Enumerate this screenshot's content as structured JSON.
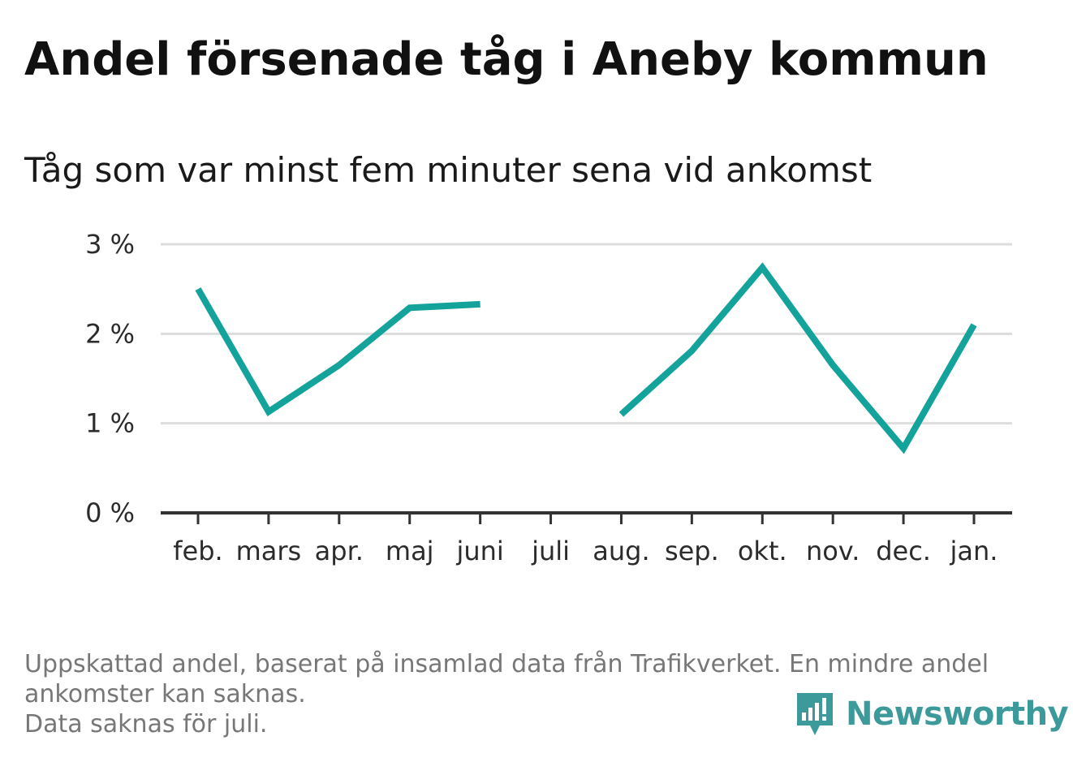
{
  "title": "Andel försenade tåg i Aneby kommun",
  "subtitle": "Tåg som var minst fem minuter sena vid ankomst",
  "colors": {
    "line": "#13a39b",
    "grid": "#dddddd",
    "axis": "#333333",
    "footer": "#777777",
    "brand": "#3d9a9b"
  },
  "chart_data": {
    "type": "line",
    "categories": [
      "feb.",
      "mars",
      "apr.",
      "maj",
      "juni",
      "juli",
      "aug.",
      "sep.",
      "okt.",
      "nov.",
      "dec.",
      "jan."
    ],
    "series": [
      {
        "values": [
          2.5,
          1.13,
          1.65,
          2.29,
          2.33,
          null,
          1.1,
          1.81,
          2.74,
          1.65,
          0.72,
          2.1
        ]
      }
    ],
    "ylim": [
      0,
      3
    ],
    "yticks": [
      0,
      1,
      2,
      3
    ],
    "ytick_labels": [
      "0 %",
      "1 %",
      "2 %",
      "3 %"
    ],
    "xlabel": "",
    "ylabel": "",
    "grid": true
  },
  "footer": {
    "line1": "Uppskattad andel, baserat på insamlad data från Trafikverket. En mindre andel",
    "line2": "ankomster kan saknas.",
    "line3": "Data saknas för juli."
  },
  "brand": {
    "name": "Newsworthy",
    "icon": "newsworthy-logo-icon"
  }
}
